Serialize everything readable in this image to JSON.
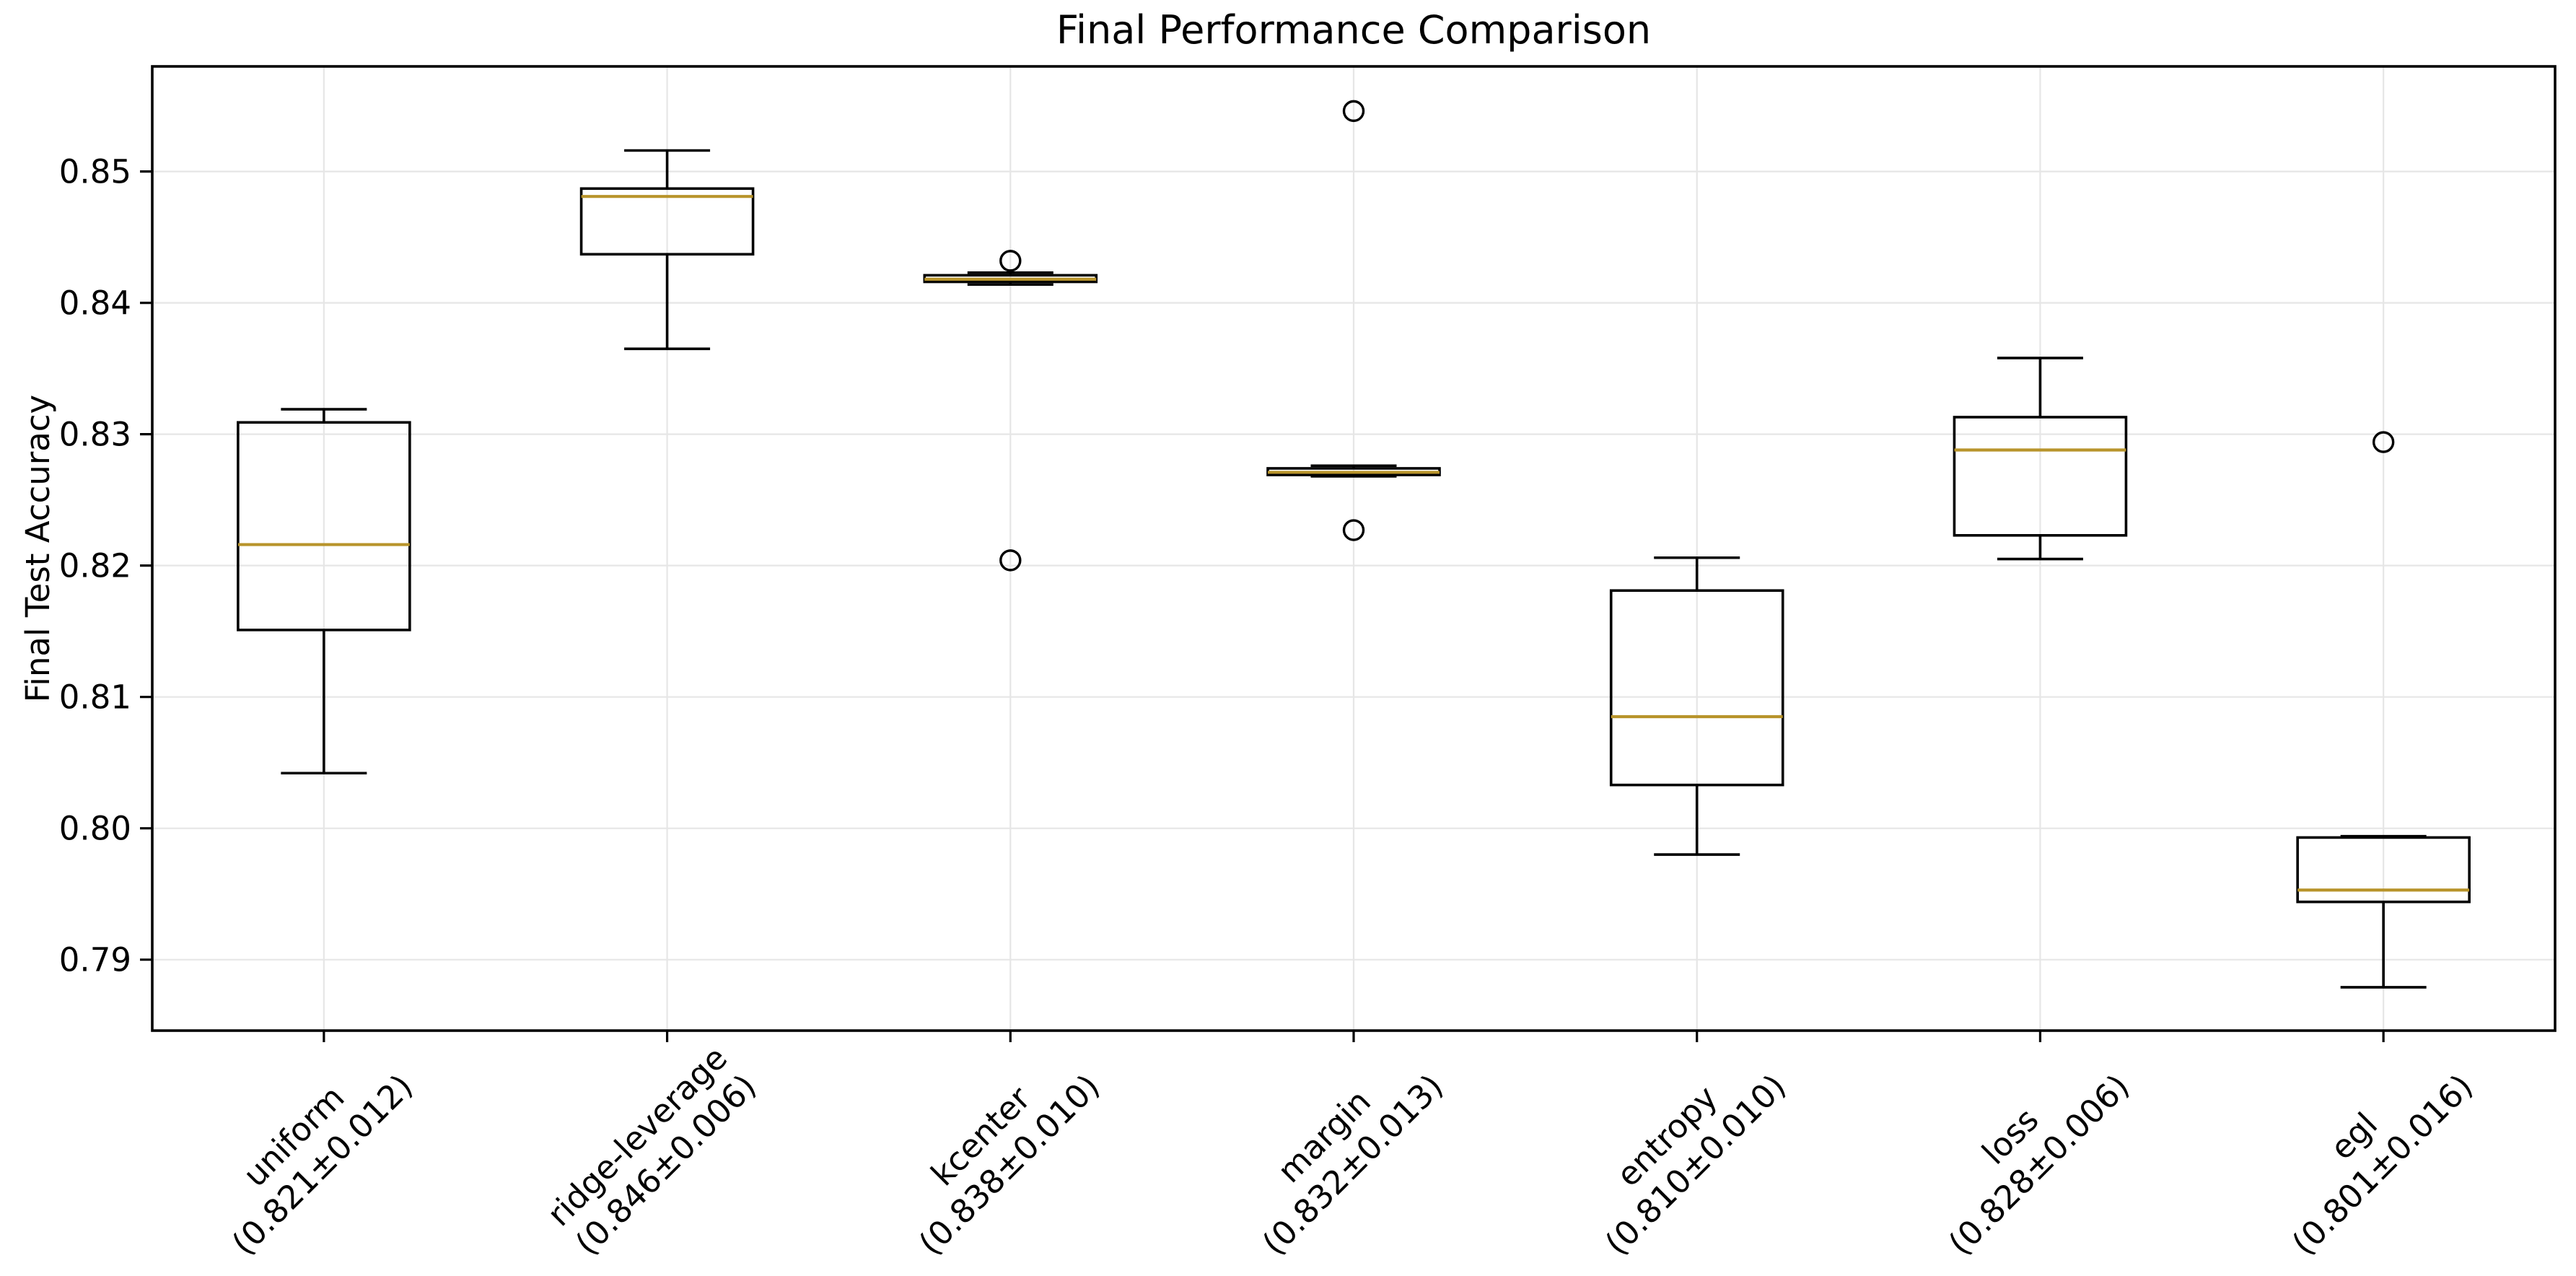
{
  "chart_data": {
    "type": "boxplot",
    "title": "Final Performance Comparison",
    "xlabel": "",
    "ylabel": "Final Test Accuracy",
    "ylim": [
      0.7846,
      0.858
    ],
    "yticks": [
      "0.79",
      "0.80",
      "0.81",
      "0.82",
      "0.83",
      "0.84",
      "0.85"
    ],
    "ytick_values": [
      0.79,
      0.8,
      0.81,
      0.82,
      0.83,
      0.84,
      0.85
    ],
    "grid": true,
    "legend": false,
    "colors": {
      "median": "#b8942b",
      "box_line": "#000000",
      "grid_line": "#e6e6e6",
      "spine": "#000000",
      "background": "#ffffff"
    },
    "series": [
      {
        "label": "uniform",
        "stat": "(0.821±0.012)",
        "whislo": 0.8042,
        "q1": 0.8151,
        "med": 0.8216,
        "q3": 0.8309,
        "whishi": 0.8319,
        "fliers": []
      },
      {
        "label": "ridge-leverage",
        "stat": "(0.846±0.006)",
        "whislo": 0.8365,
        "q1": 0.8437,
        "med": 0.8481,
        "q3": 0.8487,
        "whishi": 0.8516,
        "fliers": []
      },
      {
        "label": "kcenter",
        "stat": "(0.838±0.010)",
        "whislo": 0.8414,
        "q1": 0.8416,
        "med": 0.8418,
        "q3": 0.8421,
        "whishi": 0.8423,
        "fliers": [
          0.8432,
          0.8204
        ]
      },
      {
        "label": "margin",
        "stat": "(0.832±0.013)",
        "whislo": 0.8268,
        "q1": 0.8269,
        "med": 0.8271,
        "q3": 0.8274,
        "whishi": 0.8276,
        "fliers": [
          0.8546,
          0.8227
        ]
      },
      {
        "label": "entropy",
        "stat": "(0.810±0.010)",
        "whislo": 0.798,
        "q1": 0.8033,
        "med": 0.8085,
        "q3": 0.8181,
        "whishi": 0.8206,
        "fliers": []
      },
      {
        "label": "loss",
        "stat": "(0.828±0.006)",
        "whislo": 0.8205,
        "q1": 0.8223,
        "med": 0.8288,
        "q3": 0.8313,
        "whishi": 0.8358,
        "fliers": []
      },
      {
        "label": "egl",
        "stat": "(0.801±0.016)",
        "whislo": 0.7879,
        "q1": 0.7944,
        "med": 0.7953,
        "q3": 0.7993,
        "whishi": 0.7994,
        "fliers": [
          0.8294
        ]
      }
    ]
  }
}
